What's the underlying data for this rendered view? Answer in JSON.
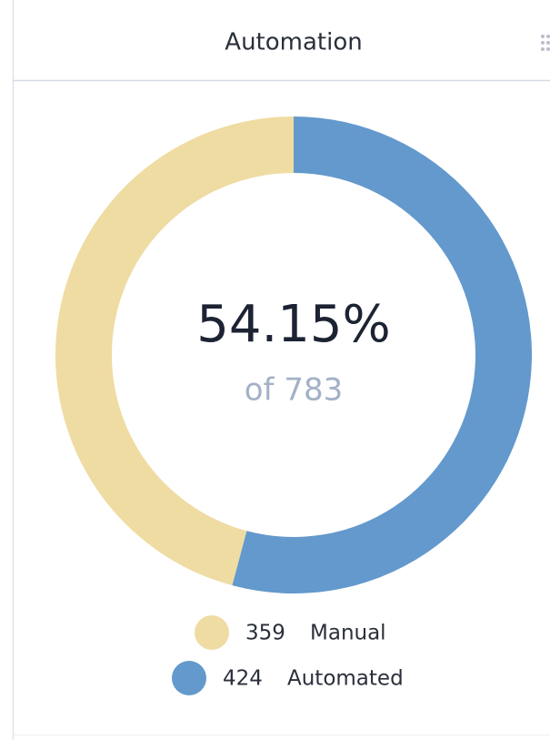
{
  "chart_data": {
    "type": "donut",
    "title": "Automation",
    "categories": [
      "Manual",
      "Automated"
    ],
    "values": [
      359,
      424
    ],
    "colors": [
      "#efdca3",
      "#6399cc"
    ],
    "center_label": "54.15%",
    "center_sublabel": "of 783"
  }
}
